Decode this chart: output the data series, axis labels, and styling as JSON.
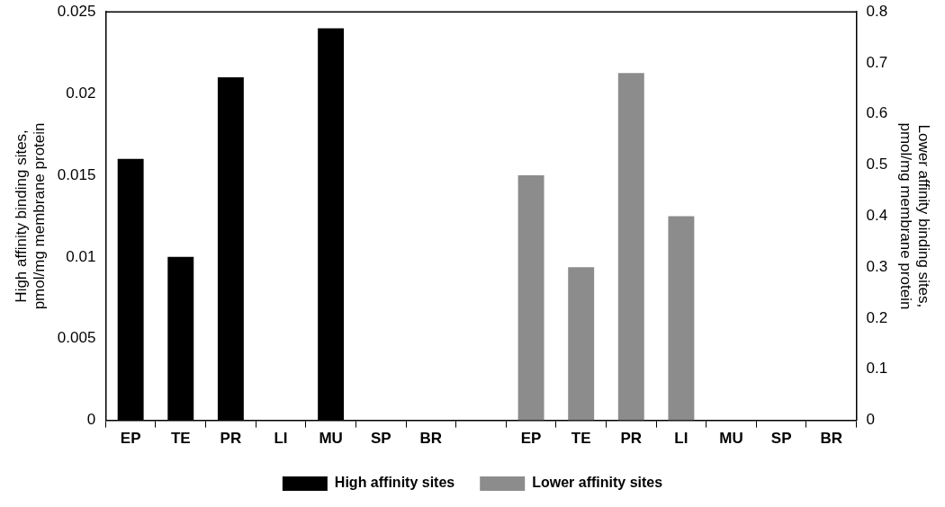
{
  "chart_data": {
    "type": "bar",
    "categories": [
      "EP",
      "TE",
      "PR",
      "LI",
      "MU",
      "SP",
      "BR",
      null,
      "EP",
      "TE",
      "PR",
      "LI",
      "MU",
      "SP",
      "BR"
    ],
    "series": [
      {
        "name": "High affinity sites",
        "color": "#000000",
        "values": [
          0.016,
          0.01,
          0.021,
          0,
          0.024,
          0,
          0,
          null,
          null,
          null,
          null,
          null,
          null,
          null,
          null
        ]
      },
      {
        "name": "Lower affinity sites",
        "color": "#8c8c8c",
        "axis": "y2",
        "values": [
          null,
          null,
          null,
          null,
          null,
          null,
          null,
          null,
          0.48,
          0.3,
          0.68,
          0.4,
          0,
          0,
          0
        ]
      }
    ],
    "ylabel": "High affinity binding sites,\npmol/mg membrane protein",
    "y2label": "Lower affinity binding sites,\npmol/mg membrane protein",
    "ylim": [
      0,
      0.025
    ],
    "yticks": [
      0,
      0.005,
      0.01,
      0.015,
      0.02,
      0.025
    ],
    "y2lim": [
      0,
      0.8
    ],
    "y2ticks": [
      0,
      0.1,
      0.2,
      0.3,
      0.4,
      0.5,
      0.6,
      0.7,
      0.8
    ],
    "grid": false,
    "legend": "bottom"
  }
}
